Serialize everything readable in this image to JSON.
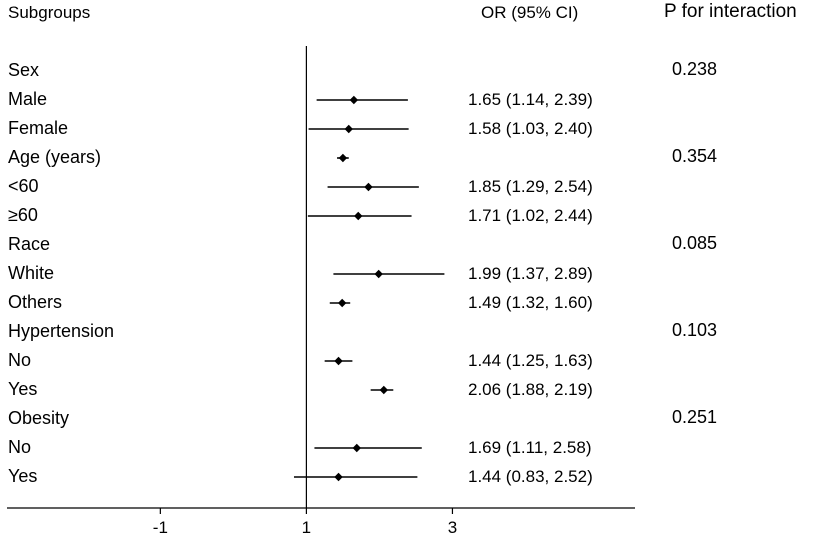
{
  "headers": {
    "subgroups": "Subgroups",
    "or": "OR (95% CI)",
    "p": "P for interaction"
  },
  "chart_data": {
    "type": "forest",
    "xlim": [
      -3.1,
      5.5
    ],
    "xticks": [
      "-1",
      "1",
      "3"
    ],
    "xtick_values": [
      -1,
      1,
      3
    ],
    "reference_line": 1,
    "rows": [
      {
        "label": "Sex",
        "p": "0.238"
      },
      {
        "label": "Male",
        "or": 1.65,
        "lo": 1.14,
        "hi": 2.39,
        "or_text": "1.65 (1.14, 2.39)"
      },
      {
        "label": "Female",
        "or": 1.58,
        "lo": 1.03,
        "hi": 2.4,
        "or_text": "1.58 (1.03, 2.40)"
      },
      {
        "label": "Age (years)",
        "or": 1.5,
        "lo": 1.42,
        "hi": 1.58,
        "p": "0.354"
      },
      {
        "label": "<60",
        "or": 1.85,
        "lo": 1.29,
        "hi": 2.54,
        "or_text": "1.85 (1.29, 2.54)"
      },
      {
        "label": "≥60",
        "or": 1.71,
        "lo": 1.02,
        "hi": 2.44,
        "or_text": "1.71 (1.02, 2.44)"
      },
      {
        "label": "Race",
        "p": "0.085"
      },
      {
        "label": "White",
        "or": 1.99,
        "lo": 1.37,
        "hi": 2.89,
        "or_text": "1.99 (1.37, 2.89)"
      },
      {
        "label": "Others",
        "or": 1.49,
        "lo": 1.32,
        "hi": 1.6,
        "or_text": "1.49 (1.32, 1.60)"
      },
      {
        "label": "Hypertension",
        "p": "0.103"
      },
      {
        "label": "No",
        "or": 1.44,
        "lo": 1.25,
        "hi": 1.63,
        "or_text": "1.44 (1.25, 1.63)"
      },
      {
        "label": "Yes",
        "or": 2.06,
        "lo": 1.88,
        "hi": 2.19,
        "or_text": "2.06 (1.88, 2.19)"
      },
      {
        "label": "Obesity",
        "p": "0.251"
      },
      {
        "label": "No",
        "or": 1.69,
        "lo": 1.11,
        "hi": 2.58,
        "or_text": "1.69 (1.11, 2.58)"
      },
      {
        "label": "Yes",
        "or": 1.44,
        "lo": 0.83,
        "hi": 2.52,
        "or_text": "1.44 (0.83, 2.52)"
      }
    ]
  }
}
